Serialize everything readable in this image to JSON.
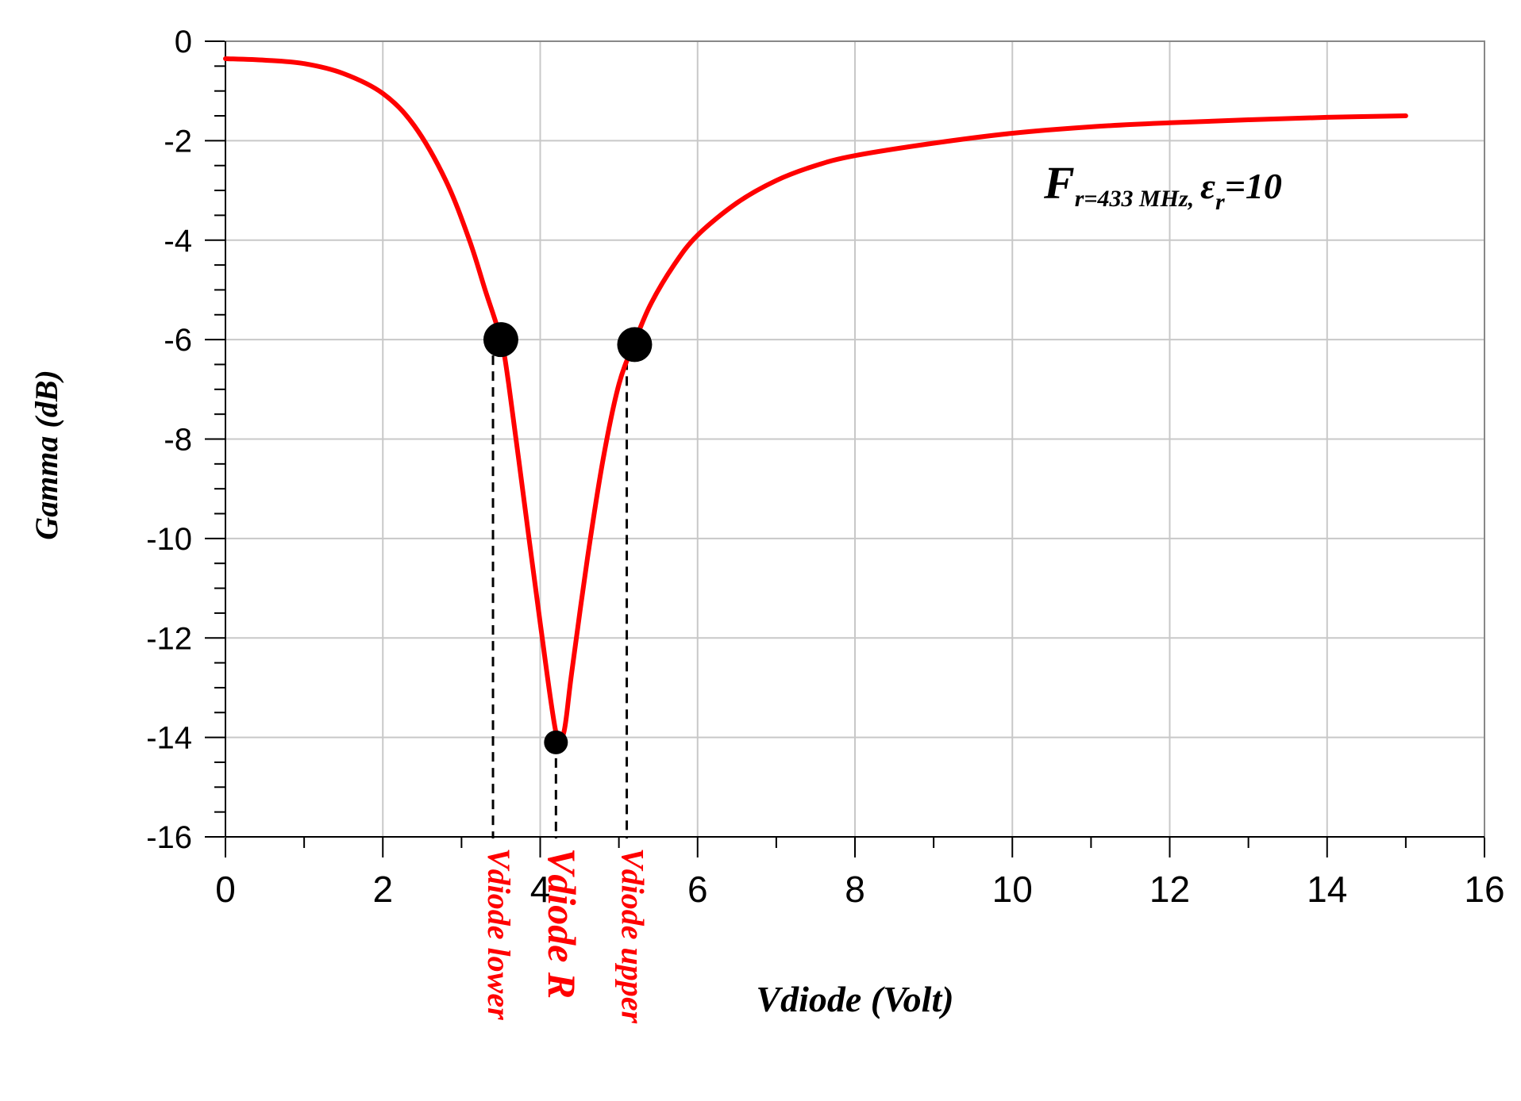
{
  "chart_data": {
    "type": "line",
    "xlabel": "Vdiode (Volt)",
    "ylabel": "Gamma (dB)",
    "xlim": [
      0,
      16
    ],
    "ylim": [
      -16,
      0
    ],
    "x_ticks": [
      0,
      2,
      4,
      6,
      8,
      10,
      12,
      14,
      16
    ],
    "y_ticks": [
      0,
      -2,
      -4,
      -6,
      -8,
      -10,
      -12,
      -14,
      -16
    ],
    "x_tick_labels": [
      "0",
      "2",
      "4",
      "6",
      "8",
      "10",
      "12",
      "14",
      "16"
    ],
    "y_tick_labels": [
      "0",
      "-2",
      "-4",
      "-6",
      "-8",
      "-10",
      "-12",
      "-14",
      "-16"
    ],
    "grid": true,
    "series": [
      {
        "color": "#ff0000",
        "x": [
          0,
          0.5,
          1.0,
          1.5,
          2.0,
          2.4,
          2.8,
          3.1,
          3.3,
          3.5,
          3.6,
          3.8,
          4.0,
          4.2,
          4.3,
          4.4,
          4.6,
          4.8,
          5.0,
          5.2,
          5.4,
          5.7,
          6.0,
          6.5,
          7.0,
          7.5,
          8.0,
          9.0,
          10.0,
          11.0,
          12.0,
          13.0,
          14.0,
          15.0
        ],
        "y": [
          -0.35,
          -0.38,
          -0.45,
          -0.65,
          -1.05,
          -1.7,
          -2.8,
          -4.0,
          -5.0,
          -6.0,
          -6.9,
          -9.3,
          -11.7,
          -13.9,
          -13.9,
          -12.7,
          -10.4,
          -8.4,
          -6.9,
          -6.05,
          -5.3,
          -4.5,
          -3.9,
          -3.25,
          -2.8,
          -2.5,
          -2.3,
          -2.05,
          -1.85,
          -1.72,
          -1.64,
          -1.58,
          -1.53,
          -1.5
        ]
      }
    ],
    "markers": [
      {
        "x": 3.5,
        "y": -6.0,
        "size": "large",
        "label": "Vdiode lower",
        "drop_x": 3.4
      },
      {
        "x": 4.2,
        "y": -14.1,
        "size": "small",
        "label": "Vdiode R",
        "drop_x": 4.2
      },
      {
        "x": 5.2,
        "y": -6.1,
        "size": "large",
        "label": "Vdiode upper",
        "drop_x": 5.1
      }
    ],
    "annotation": {
      "main": "F",
      "subscript": "r=433 MHz,",
      "epsilon": "ε",
      "epsilon_sub": "r",
      "suffix": "=10"
    }
  }
}
